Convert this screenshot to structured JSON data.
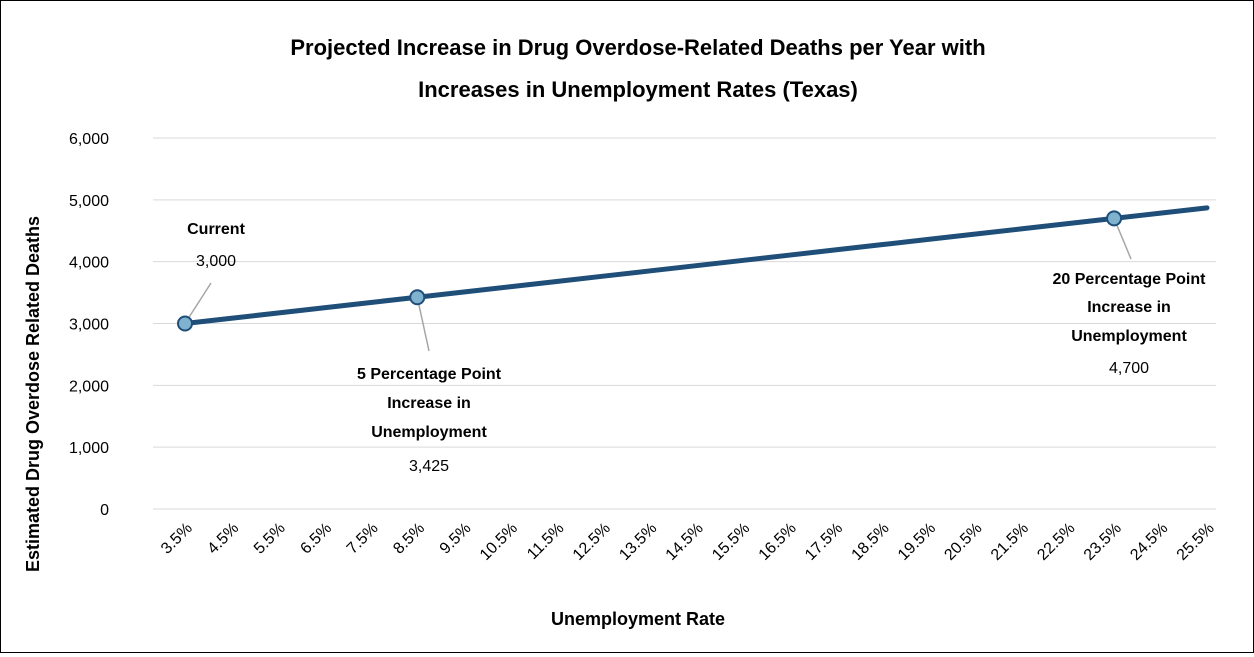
{
  "chart_data": {
    "type": "line",
    "title_lines": [
      "Projected Increase in Drug Overdose-Related Deaths per Year with",
      "Increases in Unemployment Rates (Texas)"
    ],
    "xlabel": "Unemployment Rate",
    "ylabel": "Estimated Drug Overdose Related Deaths",
    "x_categories": [
      "3.5%",
      "4.5%",
      "5.5%",
      "6.5%",
      "7.5%",
      "8.5%",
      "9.5%",
      "10.5%",
      "11.5%",
      "12.5%",
      "13.5%",
      "14.5%",
      "15.5%",
      "16.5%",
      "17.5%",
      "18.5%",
      "19.5%",
      "20.5%",
      "21.5%",
      "22.5%",
      "23.5%",
      "24.5%",
      "25.5%"
    ],
    "y_ticks": [
      "0",
      "1,000",
      "2,000",
      "3,000",
      "4,000",
      "5,000",
      "6,000"
    ],
    "ylim": [
      0,
      6000
    ],
    "series": [
      {
        "values": [
          3000,
          3085,
          3170,
          3255,
          3340,
          3425,
          3510,
          3595,
          3680,
          3765,
          3850,
          3935,
          4020,
          4105,
          4190,
          4275,
          4360,
          4445,
          4530,
          4615,
          4700,
          4785,
          4870
        ],
        "color": "#1f4e79"
      }
    ],
    "annotations": [
      {
        "index": 0,
        "label_lines": [
          "Current"
        ],
        "value_label": "3,000"
      },
      {
        "index": 5,
        "label_lines": [
          "5 Percentage Point",
          "Increase in",
          "Unemployment"
        ],
        "value_label": "3,425"
      },
      {
        "index": 20,
        "label_lines": [
          "20 Percentage Point",
          "Increase in",
          "Unemployment"
        ],
        "value_label": "4,700"
      }
    ],
    "marker_color": "#7fb2cf",
    "grid": true
  }
}
